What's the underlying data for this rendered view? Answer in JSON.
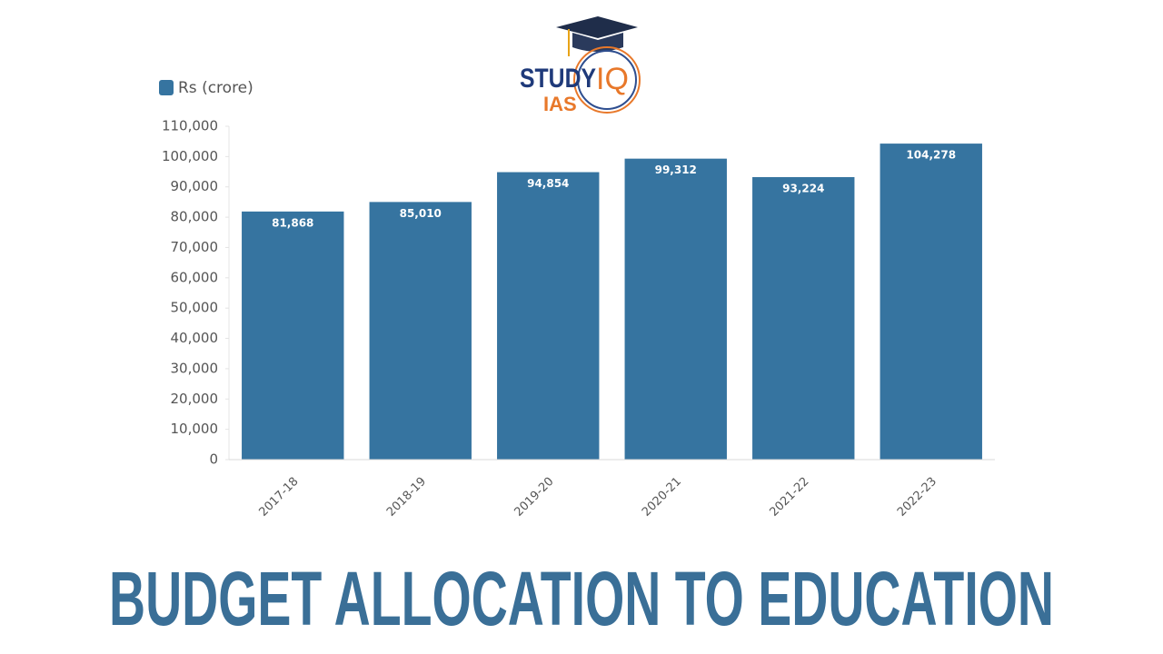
{
  "logo": {
    "text": "STUDY",
    "mark": "IQ",
    "sub": "IAS"
  },
  "chart_data": {
    "type": "bar",
    "title": "BUDGET ALLOCATION TO EDUCATION",
    "categories": [
      "2017-18",
      "2018-19",
      "2019-20",
      "2020-21",
      "2021-22",
      "2022-23"
    ],
    "series": [
      {
        "name": "Rs (crore)",
        "color": "#3674a0",
        "values": [
          81868,
          85010,
          94854,
          99312,
          93224,
          104278
        ],
        "value_labels": [
          "81,868",
          "85,010",
          "94,854",
          "99,312",
          "93,224",
          "104,278"
        ]
      }
    ],
    "ylim": [
      0,
      110000
    ],
    "yticks": [
      0,
      {
        "value": 10000,
        "label": "10,000"
      },
      {
        "value": 20000,
        "label": "20,000"
      },
      {
        "value": 30000,
        "label": "30,000"
      },
      {
        "value": 40000,
        "label": "40,000"
      },
      {
        "value": 50000,
        "label": "50,000"
      },
      {
        "value": 60000,
        "label": "60,000"
      },
      {
        "value": 70000,
        "label": "70,000"
      },
      {
        "value": 80000,
        "label": "80,000"
      },
      {
        "value": 90000,
        "label": "90,000"
      },
      {
        "value": 100000,
        "label": "100,000"
      },
      {
        "value": 110000,
        "label": "110,000"
      }
    ],
    "grid": false,
    "legend": "top-left"
  }
}
